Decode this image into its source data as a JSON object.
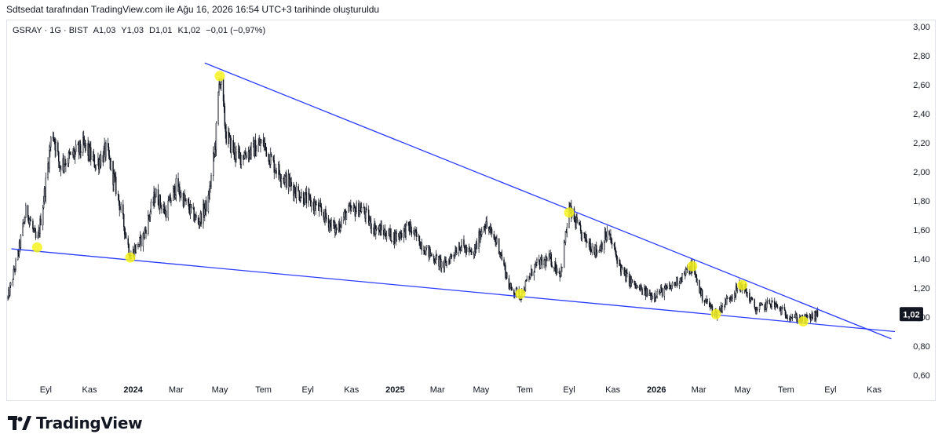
{
  "caption": "Sdtsedat tarafından TradingView.com ile Ağu 16, 2026 16:54 UTC+3 tarihinde oluşturuldu",
  "legend": {
    "symbol": "GSRAY · 1G · BIST",
    "open": "A1,03",
    "high": "Y1,03",
    "low": "D1,01",
    "close": "K1,02",
    "change": "−0,01 (−0,97%)"
  },
  "logo": {
    "text": "TradingView",
    "icon": "tradingview-logo-icon"
  },
  "colors": {
    "candle": "#131722",
    "trendline": "#2b3cff",
    "marker": "#f4f21c",
    "price_badge_bg": "#131722",
    "price_badge_text": "#ffffff"
  },
  "chart_data": {
    "type": "candlestick",
    "symbol": "GSRAY",
    "interval": "1G",
    "exchange": "BIST",
    "last_price": 1.02,
    "last_price_label": "1,02",
    "ylim": [
      0.6,
      3.0
    ],
    "y_ticks": [
      {
        "value": 3.0,
        "label": "3,00"
      },
      {
        "value": 2.8,
        "label": "2,80"
      },
      {
        "value": 2.6,
        "label": "2,60"
      },
      {
        "value": 2.4,
        "label": "2,40"
      },
      {
        "value": 2.2,
        "label": "2,20"
      },
      {
        "value": 2.0,
        "label": "2,00"
      },
      {
        "value": 1.8,
        "label": "1,80"
      },
      {
        "value": 1.6,
        "label": "1,60"
      },
      {
        "value": 1.4,
        "label": "1,40"
      },
      {
        "value": 1.2,
        "label": "1,20"
      },
      {
        "value": 1.0,
        "label": "1,00"
      },
      {
        "value": 0.8,
        "label": "0,80"
      },
      {
        "value": 0.6,
        "label": "0,60"
      }
    ],
    "x_range": [
      "2023-07-10",
      "2026-11-30"
    ],
    "x_ticks": [
      {
        "date": "2023-09-01",
        "label": "Eyl",
        "year": false
      },
      {
        "date": "2023-11-01",
        "label": "Kas",
        "year": false
      },
      {
        "date": "2024-01-01",
        "label": "2024",
        "year": true
      },
      {
        "date": "2024-03-01",
        "label": "Mar",
        "year": false
      },
      {
        "date": "2024-05-01",
        "label": "May",
        "year": false
      },
      {
        "date": "2024-07-01",
        "label": "Tem",
        "year": false
      },
      {
        "date": "2024-09-01",
        "label": "Eyl",
        "year": false
      },
      {
        "date": "2024-11-01",
        "label": "Kas",
        "year": false
      },
      {
        "date": "2025-01-01",
        "label": "2025",
        "year": true
      },
      {
        "date": "2025-03-01",
        "label": "Mar",
        "year": false
      },
      {
        "date": "2025-05-01",
        "label": "May",
        "year": false
      },
      {
        "date": "2025-07-01",
        "label": "Tem",
        "year": false
      },
      {
        "date": "2025-09-01",
        "label": "Eyl",
        "year": false
      },
      {
        "date": "2025-11-01",
        "label": "Kas",
        "year": false
      },
      {
        "date": "2026-01-01",
        "label": "2026",
        "year": true
      },
      {
        "date": "2026-03-01",
        "label": "Mar",
        "year": false
      },
      {
        "date": "2026-05-01",
        "label": "May",
        "year": false
      },
      {
        "date": "2026-07-01",
        "label": "Tem",
        "year": false
      },
      {
        "date": "2026-09-01",
        "label": "Eyl",
        "year": false
      },
      {
        "date": "2026-11-01",
        "label": "Kas",
        "year": false
      }
    ],
    "price_path": [
      {
        "date": "2023-07-10",
        "close": 1.13
      },
      {
        "date": "2023-07-25",
        "close": 1.45
      },
      {
        "date": "2023-08-05",
        "close": 1.75
      },
      {
        "date": "2023-08-20",
        "close": 1.5
      },
      {
        "date": "2023-09-01",
        "close": 1.92
      },
      {
        "date": "2023-09-10",
        "close": 2.3
      },
      {
        "date": "2023-09-20",
        "close": 2.05
      },
      {
        "date": "2023-10-05",
        "close": 2.1
      },
      {
        "date": "2023-10-25",
        "close": 2.18
      },
      {
        "date": "2023-11-10",
        "close": 2.05
      },
      {
        "date": "2023-11-25",
        "close": 2.15
      },
      {
        "date": "2023-12-10",
        "close": 1.85
      },
      {
        "date": "2023-12-28",
        "close": 1.42
      },
      {
        "date": "2024-01-15",
        "close": 1.55
      },
      {
        "date": "2024-02-01",
        "close": 1.85
      },
      {
        "date": "2024-02-15",
        "close": 1.72
      },
      {
        "date": "2024-03-01",
        "close": 1.9
      },
      {
        "date": "2024-03-15",
        "close": 1.78
      },
      {
        "date": "2024-04-01",
        "close": 1.65
      },
      {
        "date": "2024-04-15",
        "close": 1.8
      },
      {
        "date": "2024-04-25",
        "close": 2.2
      },
      {
        "date": "2024-05-01",
        "close": 2.67
      },
      {
        "date": "2024-05-10",
        "close": 2.25
      },
      {
        "date": "2024-05-25",
        "close": 2.1
      },
      {
        "date": "2024-06-15",
        "close": 2.15
      },
      {
        "date": "2024-07-01",
        "close": 2.2
      },
      {
        "date": "2024-07-15",
        "close": 2.05
      },
      {
        "date": "2024-08-01",
        "close": 1.95
      },
      {
        "date": "2024-08-20",
        "close": 1.85
      },
      {
        "date": "2024-09-15",
        "close": 1.75
      },
      {
        "date": "2024-10-10",
        "close": 1.6
      },
      {
        "date": "2024-10-25",
        "close": 1.72
      },
      {
        "date": "2024-11-15",
        "close": 1.75
      },
      {
        "date": "2024-12-01",
        "close": 1.62
      },
      {
        "date": "2025-01-01",
        "close": 1.55
      },
      {
        "date": "2025-01-20",
        "close": 1.62
      },
      {
        "date": "2025-02-15",
        "close": 1.45
      },
      {
        "date": "2025-03-10",
        "close": 1.35
      },
      {
        "date": "2025-04-01",
        "close": 1.5
      },
      {
        "date": "2025-04-20",
        "close": 1.42
      },
      {
        "date": "2025-05-05",
        "close": 1.65
      },
      {
        "date": "2025-05-25",
        "close": 1.5
      },
      {
        "date": "2025-06-10",
        "close": 1.2
      },
      {
        "date": "2025-06-25",
        "close": 1.15
      },
      {
        "date": "2025-07-15",
        "close": 1.35
      },
      {
        "date": "2025-08-05",
        "close": 1.4
      },
      {
        "date": "2025-08-20",
        "close": 1.3
      },
      {
        "date": "2025-09-01",
        "close": 1.74
      },
      {
        "date": "2025-09-20",
        "close": 1.55
      },
      {
        "date": "2025-10-10",
        "close": 1.45
      },
      {
        "date": "2025-10-25",
        "close": 1.58
      },
      {
        "date": "2025-11-15",
        "close": 1.3
      },
      {
        "date": "2025-12-05",
        "close": 1.2
      },
      {
        "date": "2025-12-25",
        "close": 1.15
      },
      {
        "date": "2026-01-20",
        "close": 1.2
      },
      {
        "date": "2026-02-20",
        "close": 1.35
      },
      {
        "date": "2026-03-05",
        "close": 1.15
      },
      {
        "date": "2026-03-25",
        "close": 1.02
      },
      {
        "date": "2026-04-15",
        "close": 1.15
      },
      {
        "date": "2026-05-01",
        "close": 1.22
      },
      {
        "date": "2026-05-20",
        "close": 1.05
      },
      {
        "date": "2026-06-10",
        "close": 1.1
      },
      {
        "date": "2026-07-01",
        "close": 1.02
      },
      {
        "date": "2026-07-25",
        "close": 0.98
      },
      {
        "date": "2026-08-16",
        "close": 1.02
      }
    ],
    "trendlines": [
      {
        "name": "upper",
        "start": {
          "date": "2024-04-10",
          "value": 2.75
        },
        "end": {
          "date": "2026-11-25",
          "value": 0.85
        }
      },
      {
        "name": "lower",
        "start": {
          "date": "2023-07-15",
          "value": 1.47
        },
        "end": {
          "date": "2026-11-30",
          "value": 0.9
        }
      }
    ],
    "markers": [
      {
        "date": "2023-08-20",
        "value": 1.48
      },
      {
        "date": "2023-12-28",
        "value": 1.41
      },
      {
        "date": "2024-05-01",
        "value": 2.66
      },
      {
        "date": "2025-06-25",
        "value": 1.16
      },
      {
        "date": "2025-09-01",
        "value": 1.72
      },
      {
        "date": "2026-02-20",
        "value": 1.35
      },
      {
        "date": "2026-03-25",
        "value": 1.02
      },
      {
        "date": "2026-05-01",
        "value": 1.22
      },
      {
        "date": "2026-07-25",
        "value": 0.97
      }
    ]
  }
}
